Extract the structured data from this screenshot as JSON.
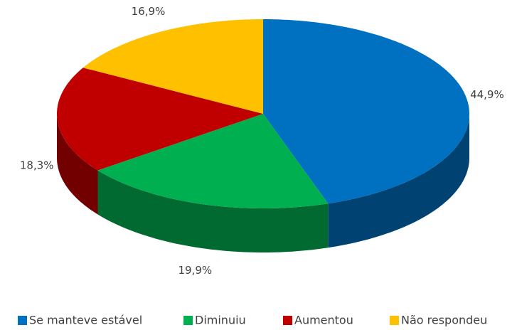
{
  "chart_data": {
    "type": "pie3d",
    "categories": [
      "Se manteve estável",
      "Diminuiu",
      "Aumentou",
      "Não respondeu"
    ],
    "values": [
      44.9,
      19.9,
      18.3,
      16.9
    ],
    "value_labels": [
      "44,9%",
      "19,9%",
      "18,3%",
      "16,9%"
    ],
    "colors": [
      "#0070c0",
      "#00b050",
      "#c00000",
      "#ffc000"
    ],
    "legend": "bottom"
  }
}
